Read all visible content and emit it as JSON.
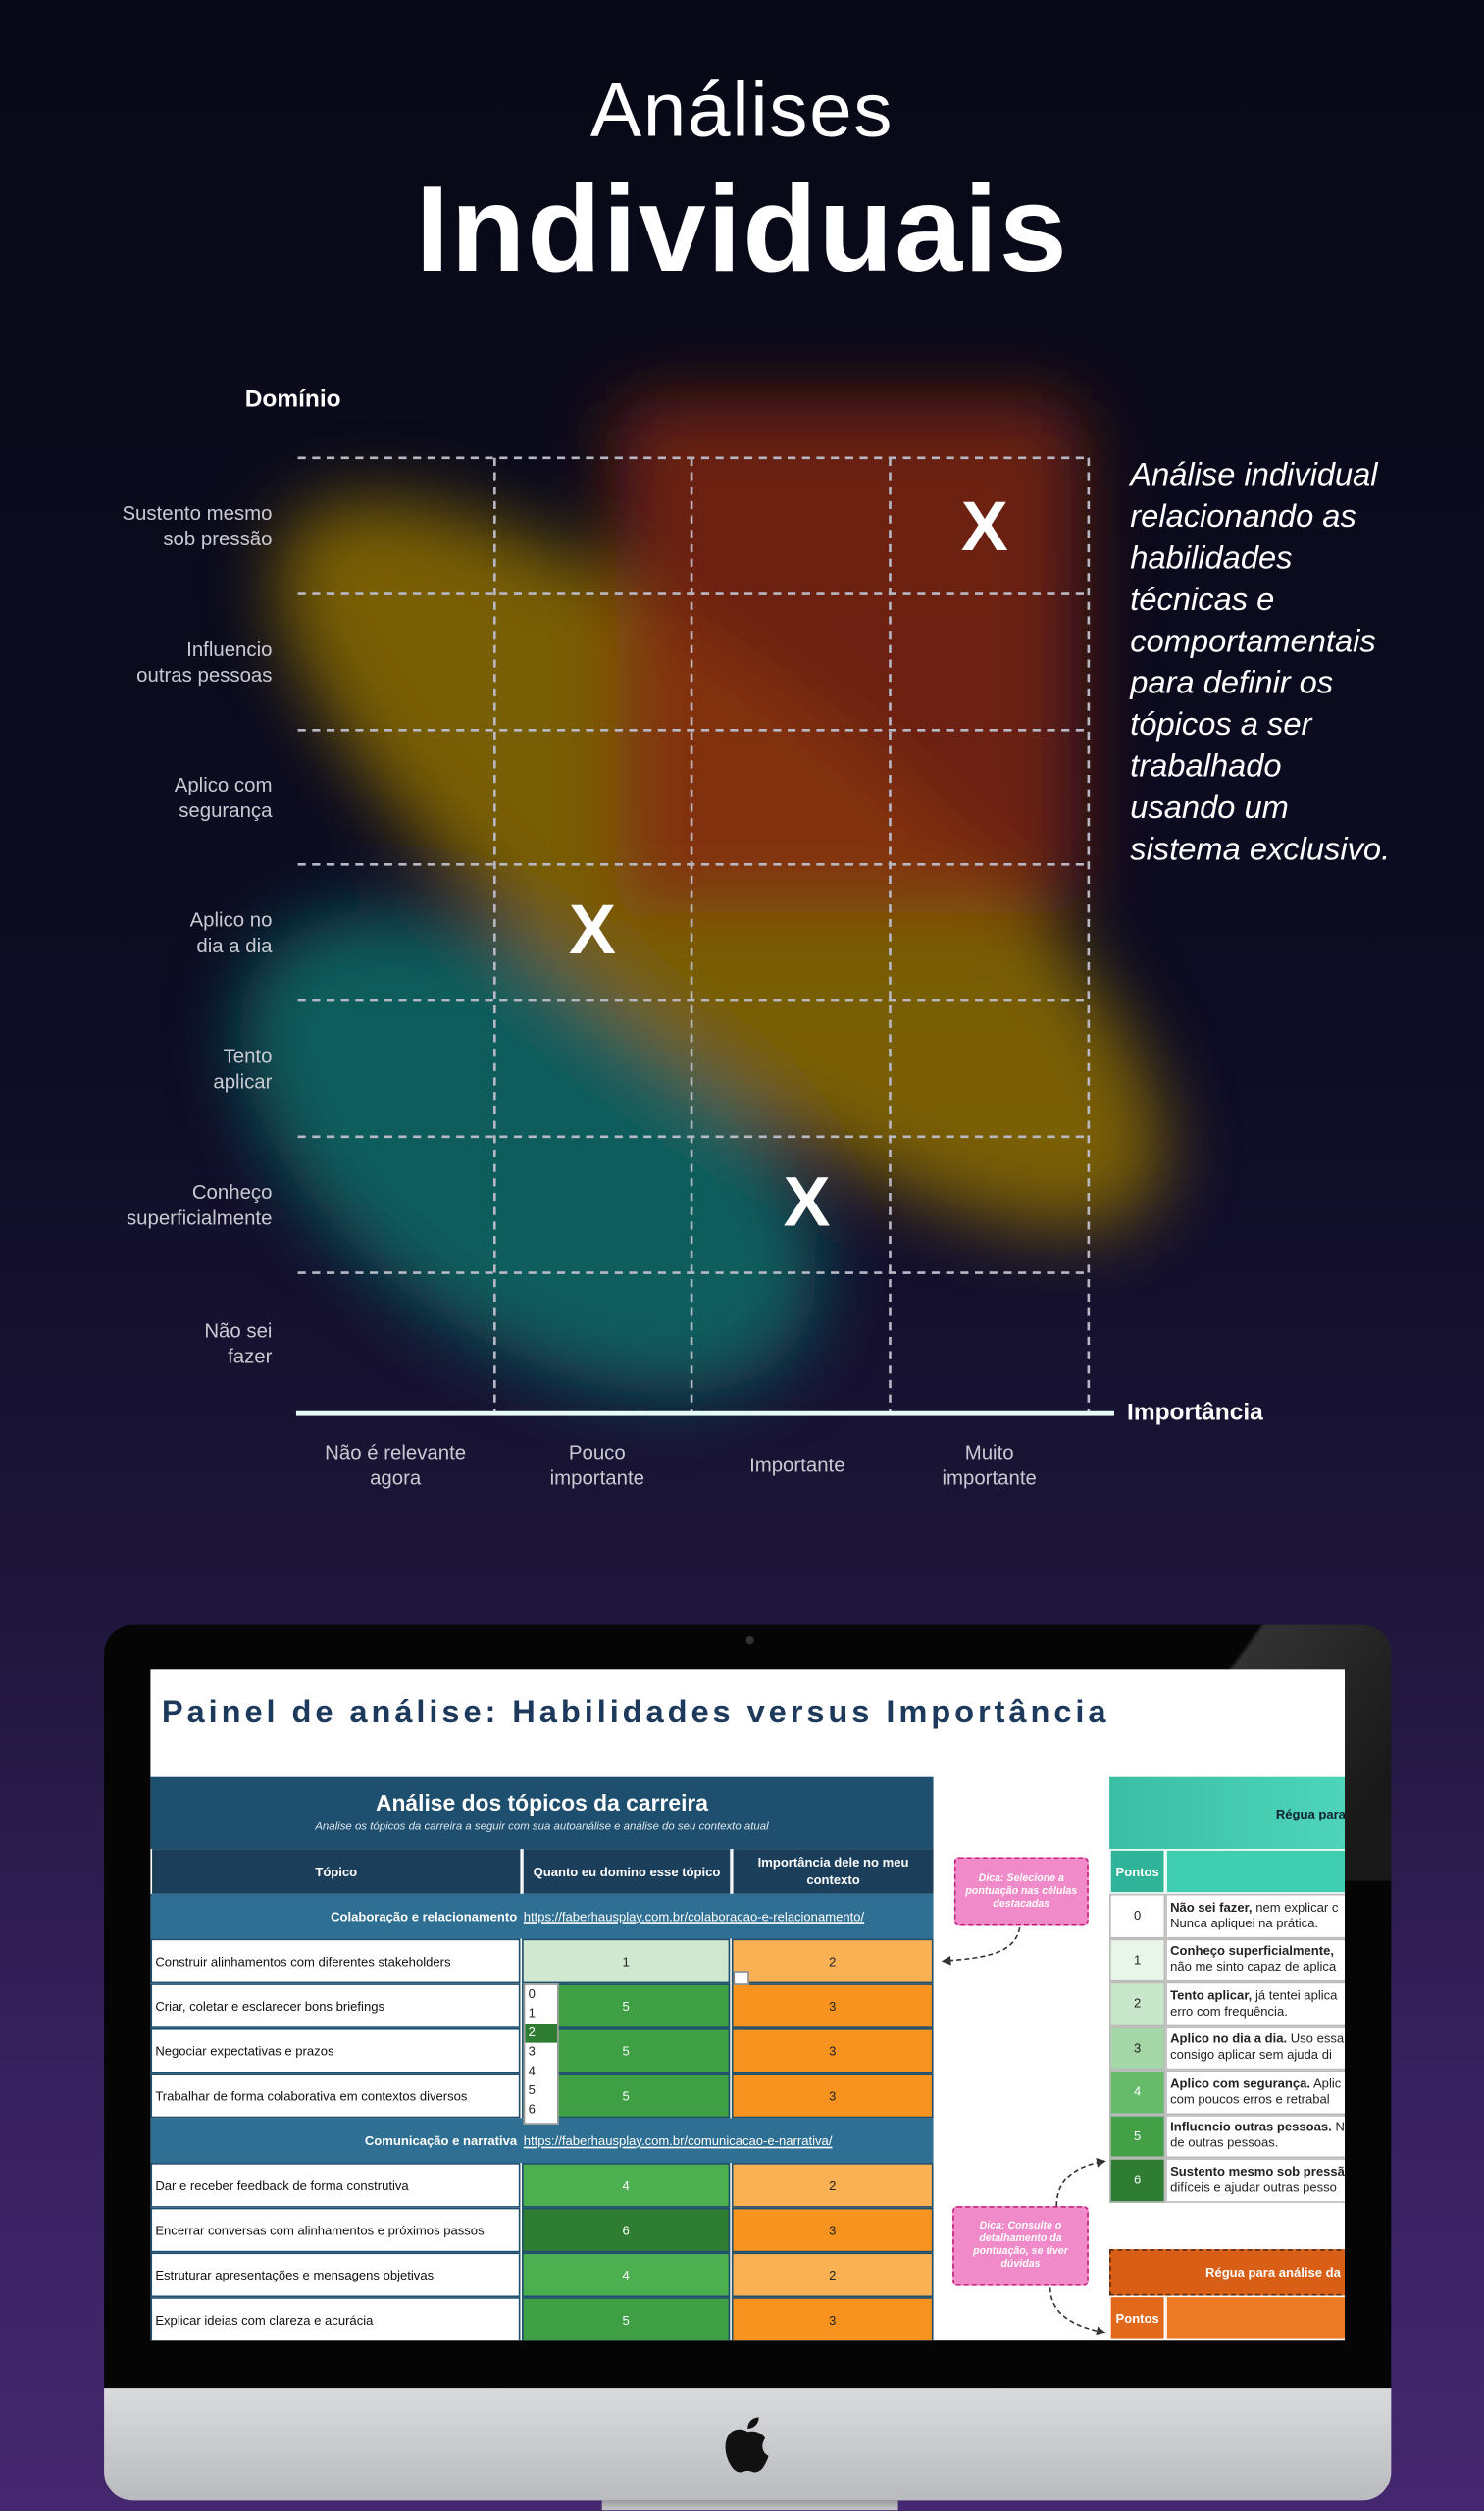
{
  "header": {
    "kicker": "Análises",
    "title": "Individuais"
  },
  "matrix": {
    "y_axis_label": "Domínio",
    "x_axis_label": "Importância",
    "y_levels": [
      [
        "Sustento mesmo",
        "sob pressão"
      ],
      [
        "Influencio",
        "outras pessoas"
      ],
      [
        "Aplico com",
        "segurança"
      ],
      [
        "Aplico no",
        "dia a dia"
      ],
      [
        "Tento",
        "aplicar"
      ],
      [
        "Conheço",
        "superficialmente"
      ],
      [
        "Não sei",
        "fazer"
      ]
    ],
    "x_levels": [
      [
        "Não é relevante",
        "agora"
      ],
      [
        "Pouco",
        "importante"
      ],
      [
        "Importante"
      ],
      [
        "Muito",
        "importante"
      ]
    ],
    "marks": [
      "X",
      "X",
      "X"
    ]
  },
  "description": [
    "Análise individual",
    "relacionando as",
    "habilidades",
    "técnicas e",
    "comportamentais",
    "para definir os",
    "tópicos a ser",
    "trabalhado",
    "usando um",
    "sistema exclusivo."
  ],
  "screen": {
    "title": "Painel de análise: Habilidades versus Importância",
    "table": {
      "title": "Análise dos tópicos da carreira",
      "subtitle": "Analise os tópicos da carreira a seguir com sua autoanálise e análise do seu contexto atual",
      "columns": [
        "Tópico",
        "Quanto eu domino esse tópico",
        "Importância dele no meu contexto"
      ],
      "sections": [
        {
          "name": "Colaboração e relacionamento",
          "link": "https://faberhausplay.com.br/colaboracao-e-relacionamento/",
          "rows": [
            [
              "Construir alinhamentos com diferentes stakeholders",
              1,
              2
            ],
            [
              "Criar, coletar e esclarecer bons briefings",
              5,
              3
            ],
            [
              "Negociar expectativas e prazos",
              5,
              3
            ],
            [
              "Trabalhar de forma colaborativa em contextos diversos",
              5,
              3
            ]
          ]
        },
        {
          "name": "Comunicação e narrativa",
          "link": "https://faberhausplay.com.br/comunicacao-e-narrativa/",
          "rows": [
            [
              "Dar e receber feedback de forma construtiva",
              4,
              2
            ],
            [
              "Encerrar conversas com alinhamentos e próximos passos",
              6,
              3
            ],
            [
              "Estruturar apresentações e mensagens objetivas",
              4,
              2
            ],
            [
              "Explicar ideias com clareza e acurácia",
              5,
              3
            ]
          ]
        }
      ]
    },
    "dropdown": [
      0,
      1,
      2,
      3,
      4,
      5,
      6
    ],
    "tips": [
      "Dica: Selecione a pontuação nas células destacadas",
      "Dica: Consulte o detalhamento da pontuação, se tiver dúvidas"
    ],
    "scale": {
      "title": "Régua para",
      "column": "Pontos",
      "rows": [
        {
          "points": 0,
          "lead": "Não sei fazer,",
          "text": " nem explicar c",
          "detail": "Nunca apliquei na prática."
        },
        {
          "points": 1,
          "lead": "Conheço superficialmente,",
          "text": "",
          "detail": "não me sinto capaz de aplica"
        },
        {
          "points": 2,
          "lead": "Tento aplicar,",
          "text": " já tentei aplica",
          "detail": "erro com frequência."
        },
        {
          "points": 3,
          "lead": "Aplico no dia a dia.",
          "text": " Uso essa",
          "detail": "consigo aplicar sem ajuda di"
        },
        {
          "points": 4,
          "lead": "Aplico com segurança.",
          "text": " Aplic",
          "detail": "com poucos erros e retrabal"
        },
        {
          "points": 5,
          "lead": "Influencio outras pessoas.",
          "text": " N",
          "detail": "de outras pessoas."
        },
        {
          "points": 6,
          "lead": "Sustento mesmo sob pressão",
          "text": "",
          "detail": "difíceis e ajudar outras pesso"
        }
      ]
    },
    "scale2": {
      "title": "Régua para análise da",
      "column": "Pontos"
    }
  }
}
